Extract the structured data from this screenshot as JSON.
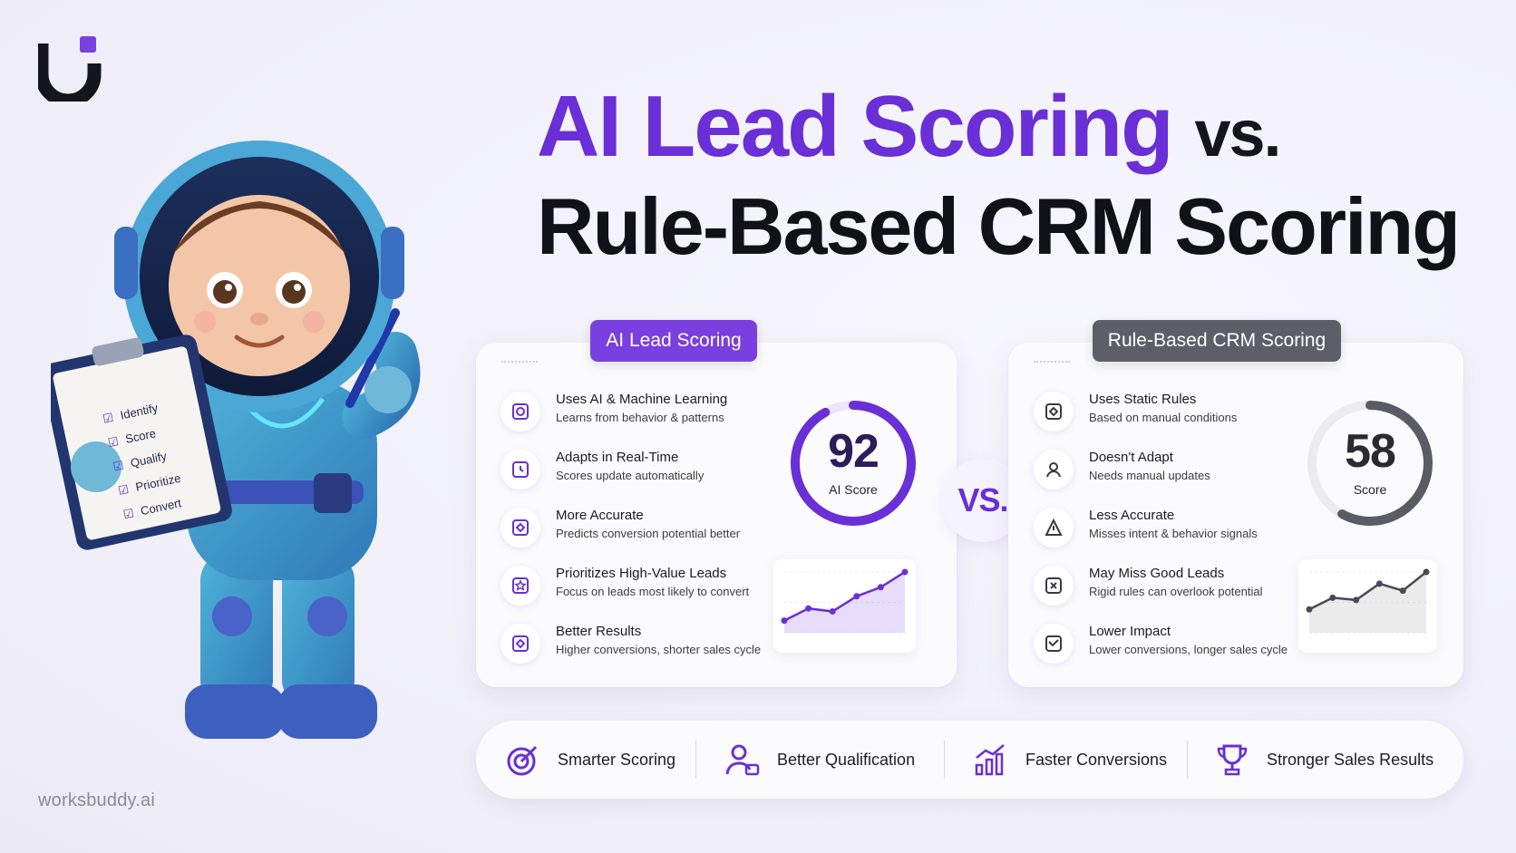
{
  "brand": {
    "name": "worksbuddy.ai",
    "accent": "#6a2fd6"
  },
  "title": {
    "accent": "AI Lead Scoring",
    "vs": "vs.",
    "line2": "Rule-Based CRM Scoring"
  },
  "ai_card": {
    "pill": "AI Lead Scoring",
    "features": [
      {
        "title": "Uses AI & Machine Learning",
        "subtitle": "Learns from behavior & patterns",
        "icon": "ai-chip-icon"
      },
      {
        "title": "Adapts in Real-Time",
        "subtitle": "Scores update automatically",
        "icon": "refresh-clock-icon"
      },
      {
        "title": "More Accurate",
        "subtitle": "Predicts conversion potential better",
        "icon": "target-icon"
      },
      {
        "title": "Prioritizes High-Value Leads",
        "subtitle": "Focus on leads most likely to convert",
        "icon": "star-lead-icon"
      },
      {
        "title": "Better Results",
        "subtitle": "Higher conversions, shorter sales cycle",
        "icon": "results-icon"
      }
    ],
    "score": {
      "value": "92",
      "label": "AI Score",
      "fraction": 0.92,
      "color": "#6a2fd6"
    },
    "trend": [
      2,
      4,
      3.5,
      6,
      7.5,
      10
    ]
  },
  "vs_label": "VS.",
  "rule_card": {
    "pill": "Rule-Based CRM Scoring",
    "features": [
      {
        "title": "Uses Static Rules",
        "subtitle": "Based on manual conditions",
        "icon": "rules-document-icon"
      },
      {
        "title": "Doesn't Adapt",
        "subtitle": "Needs manual updates",
        "icon": "user-settings-icon"
      },
      {
        "title": "Less Accurate",
        "subtitle": "Misses intent & behavior signals",
        "icon": "person-alert-icon"
      },
      {
        "title": "May Miss Good Leads",
        "subtitle": "Rigid rules can overlook potential",
        "icon": "missed-lead-icon"
      },
      {
        "title": "Lower Impact",
        "subtitle": "Lower conversions, longer sales cycle",
        "icon": "low-chart-icon"
      }
    ],
    "score": {
      "value": "58",
      "label": "Score",
      "fraction": 0.58,
      "color": "#5b5b66"
    },
    "trend": [
      2,
      3,
      2.8,
      4.2,
      3.6,
      5.2
    ]
  },
  "benefits": [
    {
      "label": "Smarter Scoring",
      "icon": "target-arrow-icon"
    },
    {
      "label": "Better Qualification",
      "icon": "qualified-user-icon"
    },
    {
      "label": "Faster Conversions",
      "icon": "growth-chart-icon"
    },
    {
      "label": "Stronger Sales Results",
      "icon": "trophy-icon"
    }
  ],
  "clipboard": {
    "items": [
      "Identify",
      "Score",
      "Qualify",
      "Prioritize",
      "Convert"
    ]
  }
}
